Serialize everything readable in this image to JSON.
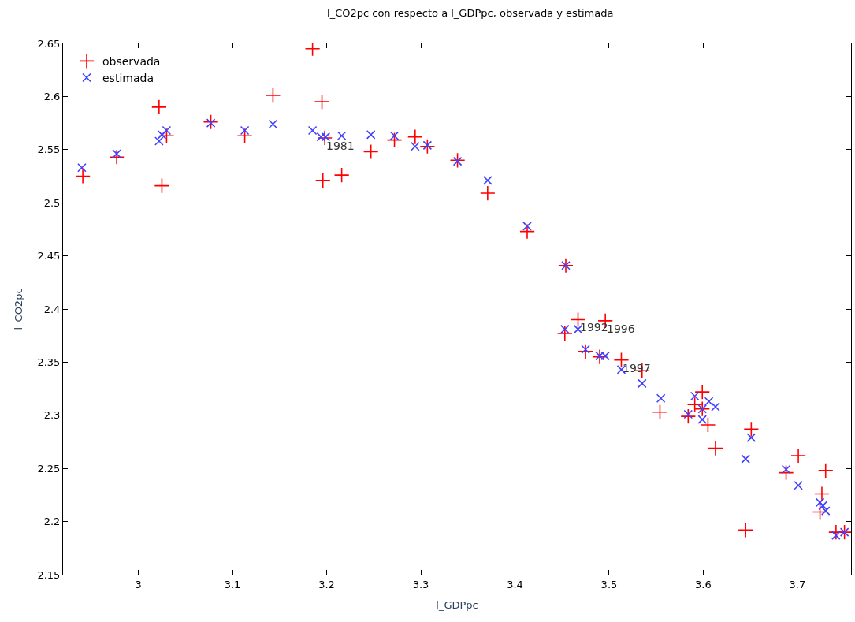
{
  "chart_data": {
    "type": "scatter",
    "title": "l_CO2pc con respecto a l_GDPpc, observada y estimada",
    "xlabel": "l_GDPpc",
    "ylabel": "l_CO2pc",
    "xlim": [
      2.92,
      3.757
    ],
    "xticks": [
      3,
      3.1,
      3.2,
      3.3,
      3.4,
      3.5,
      3.6,
      3.7
    ],
    "ylim": [
      2.15,
      2.65
    ],
    "yticks": [
      2.15,
      2.2,
      2.25,
      2.3,
      2.35,
      2.4,
      2.45,
      2.5,
      2.55,
      2.6,
      2.65
    ],
    "legend": "top left",
    "series": [
      {
        "name": "observada",
        "color": "#ff0000",
        "marker": "cross",
        "x": [
          2.941,
          2.977,
          3.022,
          3.025,
          3.03,
          3.077,
          3.113,
          3.143,
          3.185,
          3.195,
          3.196,
          3.198,
          3.216,
          3.247,
          3.272,
          3.294,
          3.307,
          3.339,
          3.371,
          3.413,
          3.454,
          3.453,
          3.467,
          3.496,
          3.475,
          3.49,
          3.513,
          3.535,
          3.554,
          3.584,
          3.599,
          3.591,
          3.599,
          3.605,
          3.613,
          3.645,
          3.651,
          3.688,
          3.701,
          3.73,
          3.726,
          3.724,
          3.741,
          3.75
        ],
        "values": [
          2.525,
          2.543,
          2.59,
          2.516,
          2.563,
          2.576,
          2.563,
          2.601,
          2.645,
          2.595,
          2.521,
          2.561,
          2.526,
          2.548,
          2.559,
          2.562,
          2.553,
          2.54,
          2.509,
          2.473,
          2.441,
          2.377,
          2.39,
          2.389,
          2.36,
          2.355,
          2.352,
          2.342,
          2.303,
          2.299,
          2.322,
          2.31,
          2.306,
          2.291,
          2.269,
          2.192,
          2.287,
          2.246,
          2.262,
          2.248,
          2.226,
          2.209,
          2.19,
          2.19
        ]
      },
      {
        "name": "estimada",
        "color": "#4040ff",
        "marker": "x",
        "x": [
          2.94,
          2.977,
          3.022,
          3.025,
          3.03,
          3.077,
          3.113,
          3.143,
          3.185,
          3.194,
          3.199,
          3.216,
          3.247,
          3.272,
          3.294,
          3.307,
          3.339,
          3.371,
          3.413,
          3.454,
          3.453,
          3.467,
          3.475,
          3.49,
          3.496,
          3.513,
          3.535,
          3.555,
          3.584,
          3.591,
          3.599,
          3.599,
          3.606,
          3.613,
          3.645,
          3.651,
          3.688,
          3.701,
          3.724,
          3.727,
          3.73,
          3.741,
          3.75
        ],
        "values": [
          2.533,
          2.546,
          2.558,
          2.564,
          2.568,
          2.575,
          2.568,
          2.574,
          2.568,
          2.562,
          2.562,
          2.563,
          2.564,
          2.563,
          2.553,
          2.554,
          2.539,
          2.521,
          2.478,
          2.441,
          2.381,
          2.381,
          2.362,
          2.356,
          2.356,
          2.343,
          2.33,
          2.316,
          2.301,
          2.318,
          2.306,
          2.296,
          2.313,
          2.308,
          2.259,
          2.279,
          2.249,
          2.234,
          2.218,
          2.215,
          2.21,
          2.187,
          2.19
        ]
      }
    ],
    "annotations": [
      {
        "text": "1981",
        "x": 3.198,
        "y": 2.561
      },
      {
        "text": "1992",
        "x": 3.467,
        "y": 2.39
      },
      {
        "text": "1996",
        "x": 3.496,
        "y": 2.389
      },
      {
        "text": "1997",
        "x": 3.513,
        "y": 2.352
      }
    ]
  }
}
